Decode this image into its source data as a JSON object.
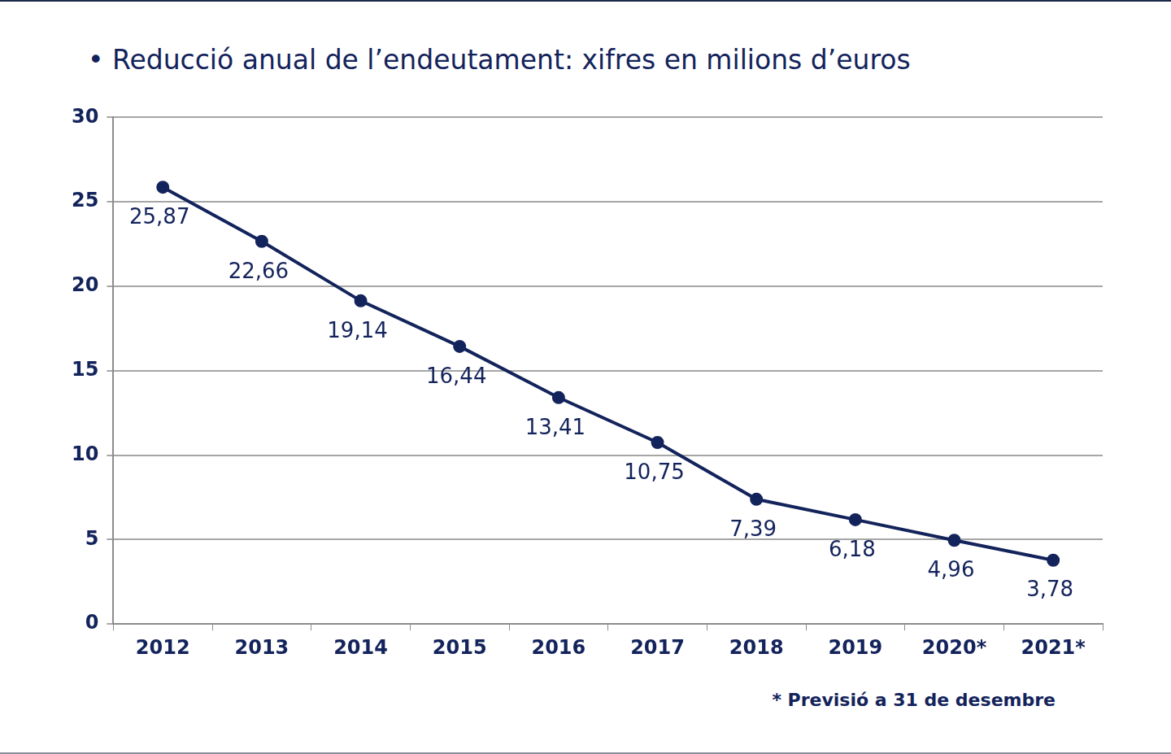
{
  "chart_data": {
    "type": "line",
    "title": "• Reducció anual de l’endeutament: xifres en milions d’euros",
    "annotation": "* Previsió a 31 de desembre",
    "categories": [
      "2012",
      "2013",
      "2014",
      "2015",
      "2016",
      "2017",
      "2018",
      "2019",
      "2020*",
      "2021*"
    ],
    "values": [
      25.87,
      22.66,
      19.14,
      16.44,
      13.41,
      10.75,
      7.39,
      6.18,
      4.96,
      3.78
    ],
    "value_labels": [
      "25,87",
      "22,66",
      "19,14",
      "16,44",
      "13,41",
      "10,75",
      "7,39",
      "6,18",
      "4,96",
      "3,78"
    ],
    "color": "#13235b",
    "marker": "circle",
    "line_style": "solid",
    "data_labels": true,
    "ylim": [
      0,
      30
    ],
    "yticks": [
      0,
      5,
      10,
      15,
      20,
      25,
      30
    ],
    "grid": true
  }
}
